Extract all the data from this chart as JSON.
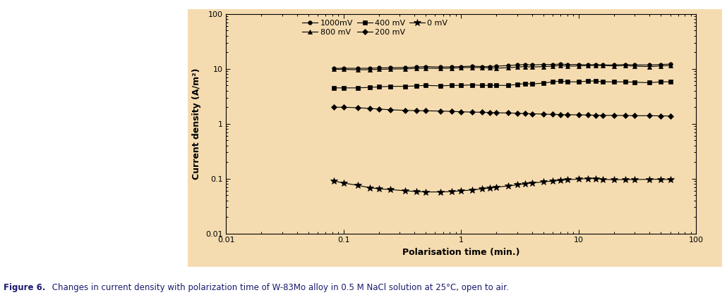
{
  "fig_bg_color": "#ffffff",
  "plot_bg_color": "#f5dcb0",
  "xlabel": "Polarisation time (min.)",
  "ylabel": "Current density (A/m²)",
  "xlim": [
    0.01,
    100
  ],
  "ylim": [
    0.01,
    100
  ],
  "caption_bold": "Figure 6.",
  "caption_normal": " Changes in current density with polarization time of W-83Mo alloy in 0.5 M NaCl solution at 25°C, open to air.",
  "series": [
    {
      "label": "1000mV",
      "color": "#000000",
      "marker": "o",
      "markersize": 4,
      "linewidth": 0.8,
      "x": [
        0.083,
        0.1,
        0.133,
        0.167,
        0.2,
        0.25,
        0.333,
        0.417,
        0.5,
        0.667,
        0.833,
        1.0,
        1.25,
        1.5,
        1.75,
        2.0,
        2.5,
        3.0,
        3.5,
        4.0,
        5.0,
        6.0,
        7.0,
        8.0,
        10.0,
        12.0,
        14.0,
        16.0,
        20.0,
        25.0,
        30.0,
        40.0,
        50.0,
        60.0
      ],
      "y": [
        10.2,
        10.3,
        10.2,
        10.3,
        10.4,
        10.5,
        10.6,
        10.8,
        11.0,
        10.8,
        10.9,
        11.0,
        11.2,
        11.0,
        11.0,
        11.2,
        11.5,
        11.8,
        12.0,
        11.8,
        12.0,
        12.0,
        12.2,
        12.0,
        12.0,
        11.8,
        12.0,
        11.8,
        11.8,
        12.0,
        11.8,
        11.8,
        12.0,
        12.2
      ]
    },
    {
      "label": "800 mV",
      "color": "#000000",
      "marker": "^",
      "markersize": 5,
      "linewidth": 0.8,
      "x": [
        0.083,
        0.1,
        0.133,
        0.167,
        0.2,
        0.25,
        0.333,
        0.417,
        0.5,
        0.667,
        0.833,
        1.0,
        1.25,
        1.5,
        1.75,
        2.0,
        2.5,
        3.0,
        3.5,
        4.0,
        5.0,
        6.0,
        7.0,
        8.0,
        10.0,
        12.0,
        14.0,
        16.0,
        20.0,
        25.0,
        30.0,
        40.0,
        50.0,
        60.0
      ],
      "y": [
        9.8,
        9.8,
        9.6,
        9.7,
        9.8,
        9.9,
        10.0,
        10.2,
        10.3,
        10.2,
        10.3,
        10.5,
        10.6,
        10.5,
        10.4,
        10.3,
        10.5,
        10.8,
        11.0,
        10.8,
        11.0,
        11.2,
        11.5,
        11.2,
        11.3,
        11.5,
        11.5,
        11.5,
        11.3,
        11.5,
        11.2,
        11.0,
        11.3,
        11.5
      ]
    },
    {
      "label": "400 mV",
      "color": "#000000",
      "marker": "s",
      "markersize": 5,
      "linewidth": 0.8,
      "x": [
        0.083,
        0.1,
        0.133,
        0.167,
        0.2,
        0.25,
        0.333,
        0.417,
        0.5,
        0.667,
        0.833,
        1.0,
        1.25,
        1.5,
        1.75,
        2.0,
        2.5,
        3.0,
        3.5,
        4.0,
        5.0,
        6.0,
        7.0,
        8.0,
        10.0,
        12.0,
        14.0,
        16.0,
        20.0,
        25.0,
        30.0,
        40.0,
        50.0,
        60.0
      ],
      "y": [
        4.5,
        4.5,
        4.5,
        4.6,
        4.7,
        4.8,
        4.8,
        4.9,
        5.0,
        4.9,
        5.0,
        5.0,
        5.1,
        5.0,
        5.0,
        5.0,
        5.0,
        5.2,
        5.4,
        5.3,
        5.5,
        5.8,
        6.0,
        5.8,
        5.8,
        6.0,
        6.0,
        5.8,
        5.8,
        5.8,
        5.7,
        5.6,
        5.8,
        5.8
      ]
    },
    {
      "label": "200 mV",
      "color": "#000000",
      "marker": "D",
      "markersize": 4,
      "linewidth": 0.8,
      "x": [
        0.083,
        0.1,
        0.133,
        0.167,
        0.2,
        0.25,
        0.333,
        0.417,
        0.5,
        0.667,
        0.833,
        1.0,
        1.25,
        1.5,
        1.75,
        2.0,
        2.5,
        3.0,
        3.5,
        4.0,
        5.0,
        6.0,
        7.0,
        8.0,
        10.0,
        12.0,
        14.0,
        16.0,
        20.0,
        25.0,
        30.0,
        40.0,
        50.0,
        60.0
      ],
      "y": [
        2.0,
        2.0,
        1.95,
        1.9,
        1.85,
        1.8,
        1.75,
        1.73,
        1.72,
        1.7,
        1.68,
        1.65,
        1.63,
        1.62,
        1.6,
        1.58,
        1.57,
        1.55,
        1.53,
        1.52,
        1.5,
        1.48,
        1.47,
        1.46,
        1.45,
        1.44,
        1.43,
        1.42,
        1.42,
        1.41,
        1.4,
        1.4,
        1.39,
        1.38
      ]
    },
    {
      "label": "0 mV",
      "color": "#000000",
      "marker": "*",
      "markersize": 7,
      "linewidth": 0.8,
      "x": [
        0.083,
        0.1,
        0.133,
        0.167,
        0.2,
        0.25,
        0.333,
        0.417,
        0.5,
        0.667,
        0.833,
        1.0,
        1.25,
        1.5,
        1.75,
        2.0,
        2.5,
        3.0,
        3.5,
        4.0,
        5.0,
        6.0,
        7.0,
        8.0,
        10.0,
        12.0,
        14.0,
        16.0,
        20.0,
        25.0,
        30.0,
        40.0,
        50.0,
        60.0
      ],
      "y": [
        0.09,
        0.083,
        0.075,
        0.068,
        0.065,
        0.063,
        0.06,
        0.058,
        0.057,
        0.057,
        0.058,
        0.06,
        0.062,
        0.065,
        0.067,
        0.07,
        0.073,
        0.077,
        0.08,
        0.083,
        0.087,
        0.09,
        0.093,
        0.095,
        0.098,
        0.1,
        0.1,
        0.097,
        0.095,
        0.096,
        0.096,
        0.097,
        0.097,
        0.096
      ]
    }
  ]
}
